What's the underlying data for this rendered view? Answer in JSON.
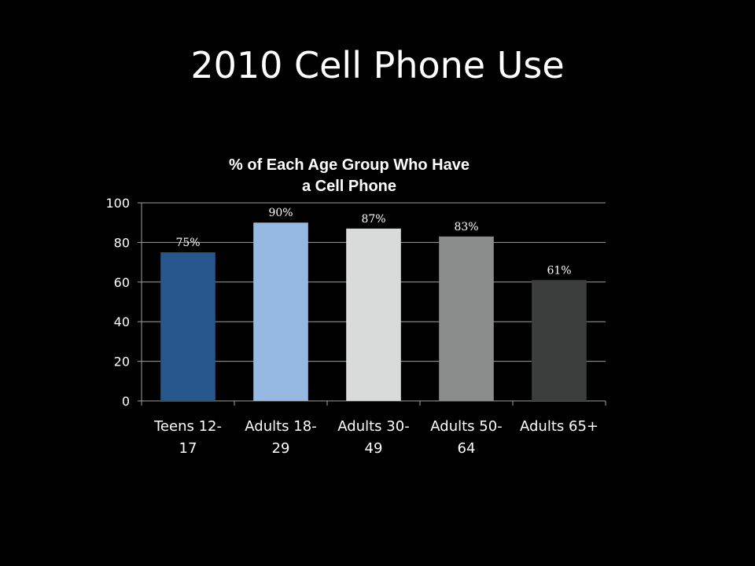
{
  "slide": {
    "title": "2010 Cell Phone Use"
  },
  "chart_data": {
    "type": "bar",
    "title_lines": [
      "% of Each Age Group Who Have",
      "a Cell Phone"
    ],
    "categories": [
      [
        "Teens 12-",
        "17"
      ],
      [
        "Adults 18-",
        "29"
      ],
      [
        "Adults 30-",
        "49"
      ],
      [
        "Adults 50-",
        "64"
      ],
      [
        "Adults 65+"
      ]
    ],
    "values": [
      75,
      90,
      87,
      83,
      61
    ],
    "data_labels": [
      "75%",
      "90%",
      "87%",
      "83%",
      "61%"
    ],
    "bar_colors": [
      "#25568c",
      "#95b9e2",
      "#d9dbdb",
      "#8a8d8b",
      "#3c3e3d"
    ],
    "ylim": [
      0,
      100
    ],
    "yticks": [
      0,
      20,
      40,
      60,
      80,
      100
    ],
    "grid": true,
    "legend": "none",
    "xlabel": "",
    "ylabel": ""
  },
  "colors": {
    "background": "#000000",
    "text": "#ffffff",
    "gridline": "#a0a0a0"
  }
}
